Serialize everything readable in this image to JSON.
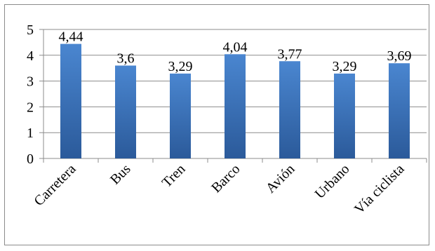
{
  "chart_data": {
    "type": "bar",
    "categories": [
      "Carretera",
      "Bus",
      "Tren",
      "Barco",
      "Avión",
      "Urbano",
      "Vía ciclista"
    ],
    "values": [
      4.44,
      3.6,
      3.29,
      4.04,
      3.77,
      3.29,
      3.69
    ],
    "data_labels": [
      "4,44",
      "3,6",
      "3,29",
      "4,04",
      "3,77",
      "3,29",
      "3,69"
    ],
    "ylim": [
      0,
      5
    ],
    "yticks": [
      0,
      1,
      2,
      3,
      4,
      5
    ],
    "ytick_labels": [
      "0",
      "1",
      "2",
      "3",
      "4",
      "5"
    ],
    "grid": true,
    "legend": "none",
    "title": "",
    "xlabel": "",
    "ylabel": "",
    "colors": {
      "bar_light": "#4a86d0",
      "bar_dark": "#2b5a9a",
      "grid": "#8c8c8c",
      "border": "#8c8c8c"
    }
  }
}
